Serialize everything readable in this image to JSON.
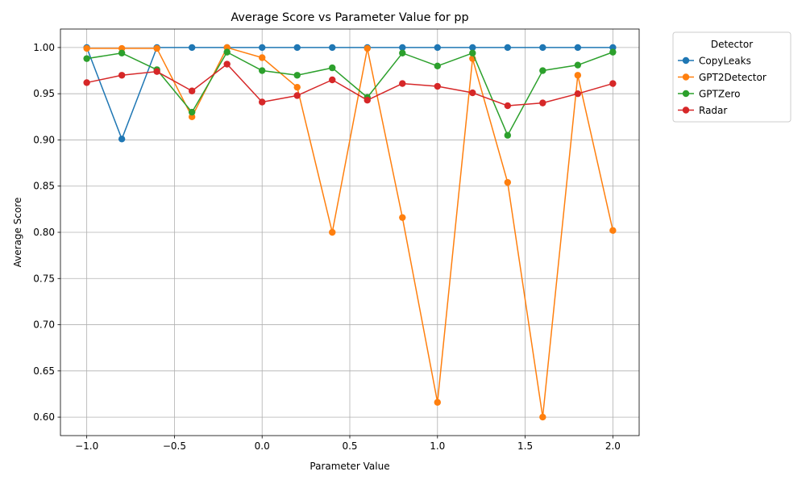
{
  "chart_data": {
    "type": "line",
    "title": "Average Score vs Parameter Value for pp",
    "xlabel": "Parameter Value",
    "ylabel": "Average Score",
    "xlim": [
      -1.15,
      2.15
    ],
    "ylim": [
      0.58,
      1.02
    ],
    "xticks": [
      -1.0,
      -0.5,
      0.0,
      0.5,
      1.0,
      1.5,
      2.0
    ],
    "xtick_labels": [
      "−1.0",
      "−0.5",
      "0.0",
      "0.5",
      "1.0",
      "1.5",
      "2.0"
    ],
    "yticks": [
      0.6,
      0.65,
      0.7,
      0.75,
      0.8,
      0.85,
      0.9,
      0.95,
      1.0
    ],
    "ytick_labels": [
      "0.60",
      "0.65",
      "0.70",
      "0.75",
      "0.80",
      "0.85",
      "0.90",
      "0.95",
      "1.00"
    ],
    "grid": true,
    "legend_title": "Detector",
    "legend_placement": "outside-top-right",
    "x": [
      -1.0,
      -0.8,
      -0.6,
      -0.4,
      -0.2,
      0.0,
      0.2,
      0.4,
      0.6,
      0.8,
      1.0,
      1.2,
      1.4,
      1.6,
      1.8,
      2.0
    ],
    "series": [
      {
        "name": "CopyLeaks",
        "color": "#1f77b4",
        "values": [
          1.0,
          0.901,
          1.0,
          1.0,
          1.0,
          1.0,
          1.0,
          1.0,
          1.0,
          1.0,
          1.0,
          1.0,
          1.0,
          1.0,
          1.0,
          1.0
        ]
      },
      {
        "name": "GPT2Detector",
        "color": "#ff7f0e",
        "values": [
          0.999,
          0.999,
          0.999,
          0.925,
          1.0,
          0.989,
          0.957,
          0.8,
          0.999,
          0.816,
          0.616,
          0.988,
          0.854,
          0.6,
          0.97,
          0.802
        ]
      },
      {
        "name": "GPTZero",
        "color": "#2ca02c",
        "values": [
          0.988,
          0.994,
          0.976,
          0.93,
          0.995,
          0.975,
          0.97,
          0.978,
          0.946,
          0.994,
          0.98,
          0.994,
          0.905,
          0.975,
          0.981,
          0.995
        ]
      },
      {
        "name": "Radar",
        "color": "#d62728",
        "values": [
          0.962,
          0.97,
          0.974,
          0.953,
          0.982,
          0.941,
          0.948,
          0.965,
          0.943,
          0.961,
          0.958,
          0.951,
          0.937,
          0.94,
          0.95,
          0.961
        ]
      }
    ]
  }
}
